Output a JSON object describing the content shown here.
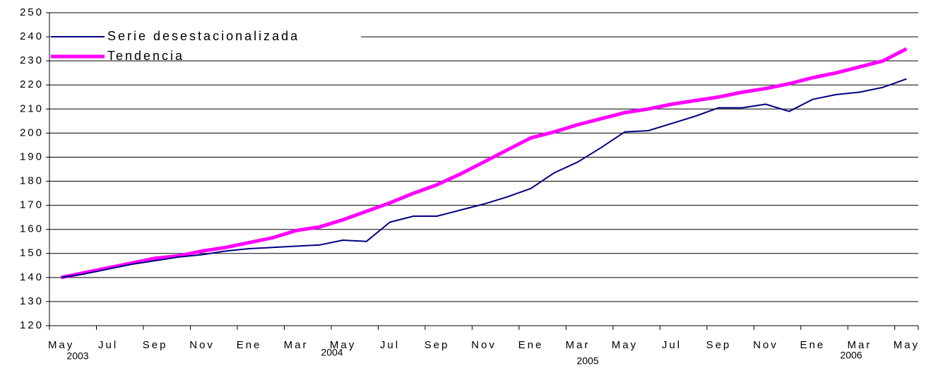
{
  "chart_data": {
    "type": "line",
    "categories": [
      "May",
      null,
      "Jul",
      null,
      "Sep",
      null,
      "Nov",
      null,
      "Ene",
      null,
      "Mar",
      null,
      "May",
      null,
      "Jul",
      null,
      "Sep",
      null,
      "Nov",
      null,
      "Ene",
      null,
      "Mar",
      null,
      "May",
      null,
      "Jul",
      null,
      "Sep",
      null,
      "Nov",
      null,
      "Ene",
      null,
      "Mar",
      null,
      "May"
    ],
    "series": [
      {
        "name": "Serie desestacionalizada",
        "color": "#000080",
        "values": [
          140,
          141.5,
          143.5,
          145.5,
          147,
          148.5,
          149.5,
          151,
          152,
          152.5,
          153,
          153.5,
          155.5,
          155,
          163,
          165.5,
          165.5,
          168,
          170.5,
          173.5,
          177,
          183.5,
          188,
          194,
          200.5,
          201,
          204,
          207,
          210.5,
          210.5,
          212,
          209,
          214,
          216,
          217,
          219,
          222.5
        ]
      },
      {
        "name": "Tendencia",
        "color": "#ff00ff",
        "values": [
          140,
          142,
          144,
          146,
          148,
          149,
          151,
          152.5,
          154.5,
          156.5,
          159.5,
          161,
          164,
          167.5,
          171,
          175,
          178.5,
          183,
          188,
          193,
          198,
          200.5,
          203.5,
          206,
          208.5,
          210,
          212,
          213.5,
          215,
          217,
          218.5,
          220.5,
          223,
          225,
          227.5,
          230,
          235
        ]
      }
    ],
    "annotations": [
      "2003",
      "2004",
      "2005",
      "2006"
    ],
    "ylim": [
      120,
      250
    ],
    "yticks": [
      120,
      130,
      140,
      150,
      160,
      170,
      180,
      190,
      200,
      210,
      220,
      230,
      240,
      250
    ],
    "grid": true,
    "legend": "top-left"
  }
}
